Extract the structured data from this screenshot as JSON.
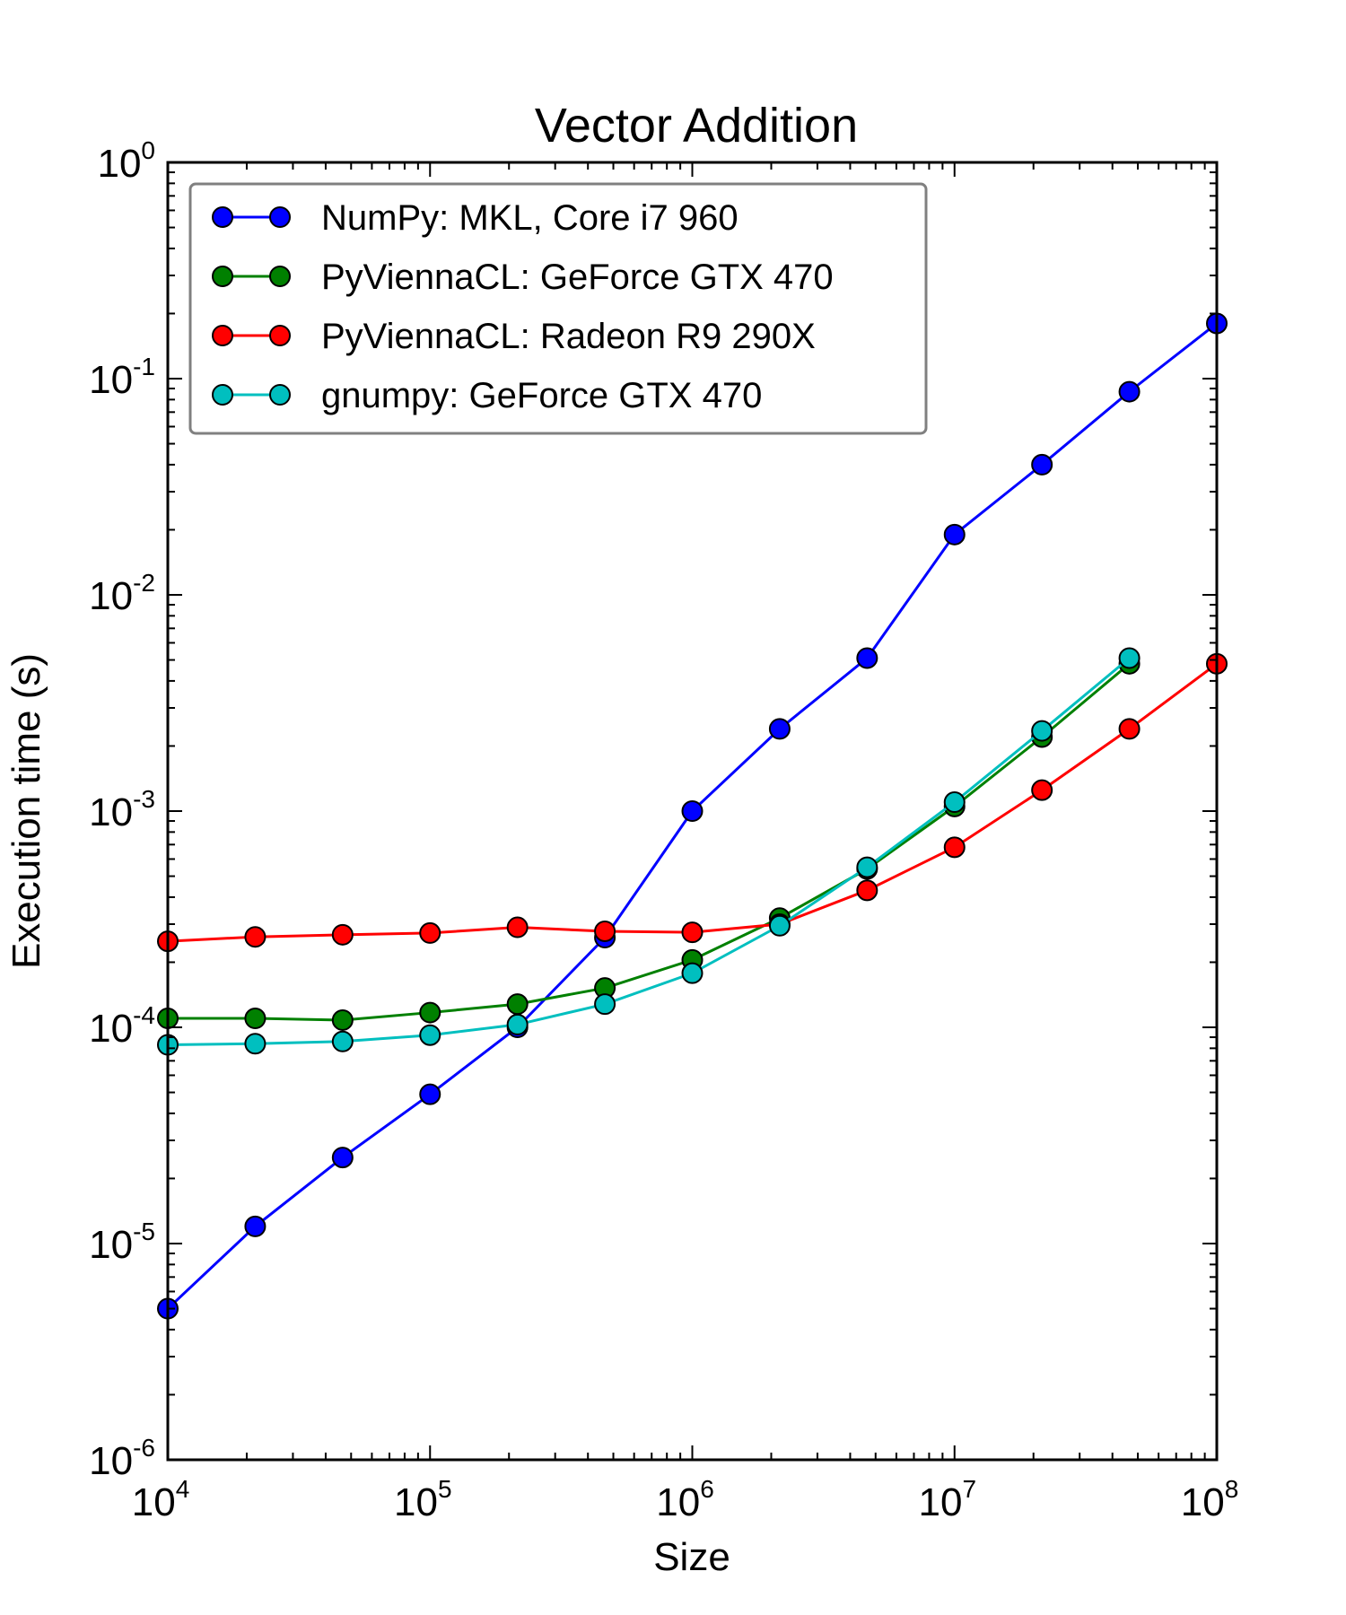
{
  "chart_data": {
    "type": "line",
    "title": "Vector Addition",
    "xlabel": "Size",
    "ylabel": "Execution time (s)",
    "xscale": "log",
    "yscale": "log",
    "xlim": [
      10000,
      100000000
    ],
    "ylim": [
      1e-06,
      1
    ],
    "x_ticks": [
      {
        "base": "10",
        "exp": "4"
      },
      {
        "base": "10",
        "exp": "5"
      },
      {
        "base": "10",
        "exp": "6"
      },
      {
        "base": "10",
        "exp": "7"
      },
      {
        "base": "10",
        "exp": "8"
      }
    ],
    "y_ticks": [
      {
        "base": "10",
        "exp": "0"
      },
      {
        "base": "10",
        "exp": "-1"
      },
      {
        "base": "10",
        "exp": "-2"
      },
      {
        "base": "10",
        "exp": "-3"
      },
      {
        "base": "10",
        "exp": "-4"
      },
      {
        "base": "10",
        "exp": "-5"
      },
      {
        "base": "10",
        "exp": "-6"
      }
    ],
    "legend_position": "top-left",
    "grid": false,
    "x": [
      10000,
      21544,
      46416,
      100000,
      215443,
      464159,
      1000000,
      2154435,
      4641589,
      10000000,
      21544347,
      46415888,
      100000000
    ],
    "series": [
      {
        "name": "NumPy: MKL, Core i7 960",
        "color": "#0000ff",
        "values": [
          5e-06,
          1.2e-05,
          2.5e-05,
          4.9e-05,
          0.0001,
          0.00026,
          0.001,
          0.0024,
          0.0051,
          0.019,
          0.04,
          0.087,
          0.18
        ]
      },
      {
        "name": "PyViennaCL: GeForce GTX 470",
        "color": "#008000",
        "values": [
          0.00011,
          0.00011,
          0.000108,
          0.000117,
          0.000128,
          0.000152,
          0.000205,
          0.00032,
          0.00054,
          0.00105,
          0.0022,
          0.0048,
          null
        ]
      },
      {
        "name": "PyViennaCL: Radeon R9 290X",
        "color": "#ff0000",
        "values": [
          0.00025,
          0.000262,
          0.000268,
          0.000273,
          0.00029,
          0.000278,
          0.000275,
          0.0003,
          0.00043,
          0.00068,
          0.00125,
          0.0024,
          0.0048
        ]
      },
      {
        "name": "gnumpy: GeForce GTX 470",
        "color": "#00bfbf",
        "values": [
          8.3e-05,
          8.4e-05,
          8.6e-05,
          9.2e-05,
          0.000103,
          0.000128,
          0.000178,
          0.000295,
          0.00055,
          0.0011,
          0.00235,
          0.0051,
          null
        ]
      }
    ]
  }
}
